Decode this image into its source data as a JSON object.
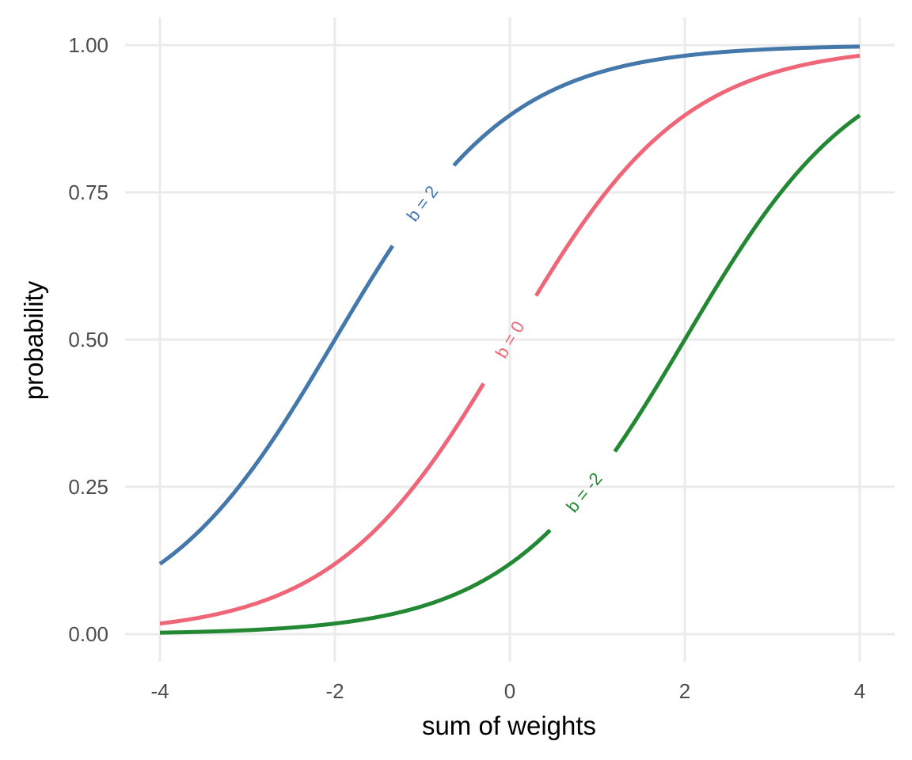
{
  "chart_data": {
    "type": "line",
    "title": "",
    "xlabel": "sum of weights",
    "ylabel": "probability",
    "xlim": [
      -4,
      4
    ],
    "ylim": [
      0,
      1
    ],
    "x_ticks": [
      -4,
      -2,
      0,
      2,
      4
    ],
    "x_tick_labels": [
      "-4",
      "-2",
      "0",
      "2",
      "4"
    ],
    "y_ticks": [
      0,
      0.25,
      0.5,
      0.75,
      1
    ],
    "y_tick_labels": [
      "0.00",
      "0.25",
      "0.50",
      "0.75",
      "1.00"
    ],
    "grid": true,
    "legend": "none",
    "function": "logistic: y = 1 / (1 + exp(-(x + b)))",
    "series": [
      {
        "name": "b = 2",
        "b": 2,
        "color": "#4477aa",
        "label_at_x": -1.0,
        "x": [
          -4,
          -3,
          -2,
          -1,
          0,
          1,
          2,
          3,
          4
        ],
        "values": [
          0.119,
          0.269,
          0.5,
          0.731,
          0.881,
          0.953,
          0.982,
          0.993,
          0.998
        ]
      },
      {
        "name": "b = 0",
        "b": 0,
        "color": "#ee6677",
        "label_at_x": 0.0,
        "x": [
          -4,
          -3,
          -2,
          -1,
          0,
          1,
          2,
          3,
          4
        ],
        "values": [
          0.018,
          0.047,
          0.119,
          0.269,
          0.5,
          0.731,
          0.881,
          0.953,
          0.982
        ]
      },
      {
        "name": "b = -2",
        "b": -2,
        "color": "#228833",
        "label_at_x": 0.85,
        "x": [
          -4,
          -3,
          -2,
          -1,
          0,
          1,
          2,
          3,
          4
        ],
        "values": [
          0.002,
          0.007,
          0.018,
          0.047,
          0.119,
          0.269,
          0.5,
          0.731,
          0.881
        ]
      }
    ]
  }
}
